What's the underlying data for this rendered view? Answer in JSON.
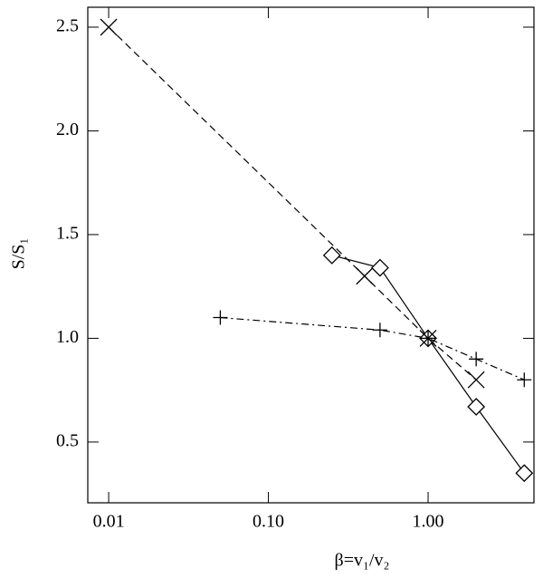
{
  "chart_data": {
    "type": "line",
    "xlabel": "β=v₁/v₂",
    "ylabel": "S/S₁",
    "xscale": "log",
    "xlim": [
      0.0074,
      4.6
    ],
    "ylim": [
      0.207,
      2.596
    ],
    "xticks": [
      {
        "value": 0.01,
        "label": "0.01"
      },
      {
        "value": 0.1,
        "label": "0.10"
      },
      {
        "value": 1,
        "label": "1.00"
      }
    ],
    "yticks": [
      0.5,
      {
        "value": 1,
        "label": "1.0"
      },
      1.5,
      {
        "value": 2,
        "label": "2.0"
      },
      2.5
    ],
    "series": [
      {
        "color": "#000000",
        "marker": "diamond",
        "dash": "solid",
        "x": [
          0.25,
          0.5,
          1,
          2,
          4
        ],
        "values": [
          1.4,
          1.34,
          1.0,
          0.67,
          0.35
        ]
      },
      {
        "color": "#000000",
        "marker": "x",
        "dash": "dashed",
        "x": [
          0.01,
          0.4,
          1,
          2
        ],
        "values": [
          2.5,
          1.3,
          1.0,
          0.8
        ]
      },
      {
        "color": "#000000",
        "marker": "plus",
        "dash": "dashdot",
        "x": [
          0.05,
          0.5,
          1,
          2,
          4
        ],
        "values": [
          1.1,
          1.04,
          1.0,
          0.9,
          0.8
        ]
      }
    ]
  }
}
